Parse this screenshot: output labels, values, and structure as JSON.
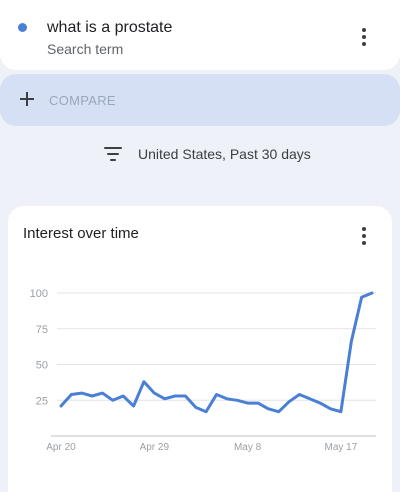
{
  "search_term": {
    "title": "what is a prostate",
    "subtitle": "Search term",
    "dot_color": "#4a7fd6"
  },
  "compare": {
    "label": "COMPARE"
  },
  "filter": {
    "label": "United States, Past 30 days"
  },
  "chart_card": {
    "title": "Interest over time"
  },
  "chart_data": {
    "type": "line",
    "title": "",
    "ylim": [
      0,
      100
    ],
    "y_ticks": [
      "100",
      "75",
      "50",
      "25"
    ],
    "x_tick_labels": [
      "Apr 20",
      "Apr 29",
      "May 8",
      "May 17"
    ],
    "grid": true,
    "series": [
      {
        "color": "#4a7fd6",
        "x": [
          "Apr 20",
          "Apr 21",
          "Apr 22",
          "Apr 23",
          "Apr 24",
          "Apr 25",
          "Apr 26",
          "Apr 27",
          "Apr 28",
          "Apr 29",
          "Apr 30",
          "May 1",
          "May 2",
          "May 3",
          "May 4",
          "May 5",
          "May 6",
          "May 7",
          "May 8",
          "May 9",
          "May 10",
          "May 11",
          "May 12",
          "May 13",
          "May 14",
          "May 15",
          "May 16",
          "May 17",
          "May 18",
          "May 19",
          "May 20"
        ],
        "values": [
          21,
          29,
          30,
          28,
          30,
          25,
          28,
          21,
          38,
          30,
          26,
          28,
          28,
          20,
          17,
          29,
          26,
          25,
          23,
          23,
          19,
          17,
          24,
          29,
          26,
          23,
          19,
          17,
          66,
          97,
          100
        ]
      }
    ]
  }
}
